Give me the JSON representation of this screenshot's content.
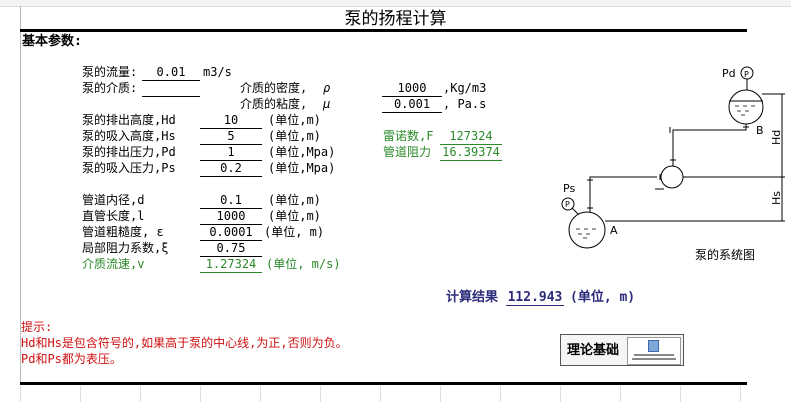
{
  "title": "泵的扬程计算",
  "section": "基本参数:",
  "flow": {
    "label": "泵的流量:",
    "value": "0.01",
    "unit": "m3/s"
  },
  "medium": {
    "label": "泵的介质:",
    "value": ""
  },
  "density": {
    "label": "介质的密度,",
    "symbol": "ρ",
    "value": "1000",
    "unit": ",Kg/m3"
  },
  "viscosity": {
    "label": "介质的粘度,",
    "symbol": "μ",
    "value": "0.001",
    "unit": ", Pa.s"
  },
  "params": [
    {
      "label": "泵的排出高度,Hd",
      "value": "10",
      "unit": "(单位,m)"
    },
    {
      "label": "泵的吸入高度,Hs",
      "value": "5",
      "unit": "(单位,m)"
    },
    {
      "label": "泵的排出压力,Pd",
      "value": "1",
      "unit": "(单位,Mpa)"
    },
    {
      "label": "泵的吸入压力,Ps",
      "value": "0.2",
      "unit": "(单位,Mpa)"
    }
  ],
  "pipe": [
    {
      "label": "管道内径,d",
      "value": "0.1",
      "unit": "(单位,m)"
    },
    {
      "label": "直管长度,l",
      "value": "1000",
      "unit": "(单位,m)"
    },
    {
      "label": "管道粗糙度, ε",
      "value": "0.0001",
      "unit": "(单位, m)"
    },
    {
      "label": "局部阻力系数,ξ",
      "value": "0.75",
      "unit": ""
    },
    {
      "label": "介质流速,v",
      "value": "1.27324",
      "unit": "(单位, m/s)"
    }
  ],
  "reynolds": {
    "label": "雷诺数,F",
    "value": "127324"
  },
  "resistance": {
    "label": "管道阻力",
    "value": "16.39374"
  },
  "result": {
    "label": "计算结果",
    "value": "112.943",
    "unit": "(单位, m)"
  },
  "tips": {
    "title": "提示:",
    "line1": "Hd和Hs是包含符号的,如果高于泵的中心线,为正,否则为负。",
    "line2": "Pd和Ps都为表压。"
  },
  "theory_button": "理论基础",
  "diagram": {
    "caption": "泵的系统图",
    "pd": "Pd",
    "ps": "Ps",
    "p": "P",
    "a": "A",
    "b": "B",
    "hd": "Hd",
    "hs": "Hs"
  },
  "colors": {
    "green": "#2a8a2a",
    "red": "#d01010",
    "result": "#2b2b7a"
  }
}
